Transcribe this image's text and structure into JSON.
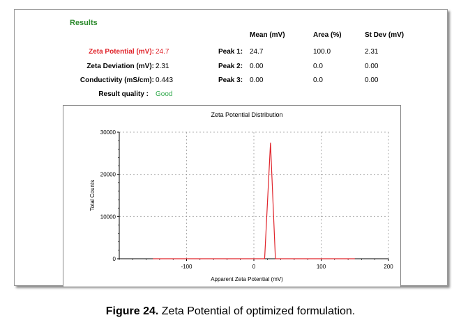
{
  "results": {
    "title": "Results",
    "left_rows": [
      {
        "label": "Zeta Potential (mV):",
        "value": "24.7"
      },
      {
        "label": "Zeta Deviation (mV):",
        "value": "2.31"
      },
      {
        "label": "Conductivity (mS/cm):",
        "value": "0.443"
      },
      {
        "label": "Result quality :",
        "value": "Good"
      }
    ],
    "table_headers": [
      "Mean (mV)",
      "Area (%)",
      "St Dev (mV)"
    ],
    "peaks": [
      {
        "label": "Peak 1:",
        "mean": "24.7",
        "area": "100.0",
        "stdev": "2.31"
      },
      {
        "label": "Peak 2:",
        "mean": "0.00",
        "area": "0.0",
        "stdev": "0.00"
      },
      {
        "label": "Peak 3:",
        "mean": "0.00",
        "area": "0.0",
        "stdev": "0.00"
      }
    ],
    "colors": {
      "zeta_label": "#e0242b",
      "good": "#2ea84a",
      "title": "#2e8b2e"
    }
  },
  "chart_data": {
    "type": "line",
    "title": "Zeta Potential Distribution",
    "xlabel": "Apparent Zeta Potential (mV)",
    "ylabel": "Total Counts",
    "xlim": [
      -200,
      200
    ],
    "ylim": [
      0,
      30000
    ],
    "xticks": [
      -100,
      0,
      100,
      200
    ],
    "yticks": [
      0,
      10000,
      20000,
      30000
    ],
    "grid": true,
    "series": [
      {
        "color": "#e0242b",
        "x": [
          -150,
          16,
          24.7,
          32,
          150
        ],
        "y": [
          0,
          0,
          27500,
          0,
          0
        ]
      }
    ]
  },
  "caption": {
    "label": "Figure 24.",
    "text": " Zeta Potential of optimized formulation."
  }
}
